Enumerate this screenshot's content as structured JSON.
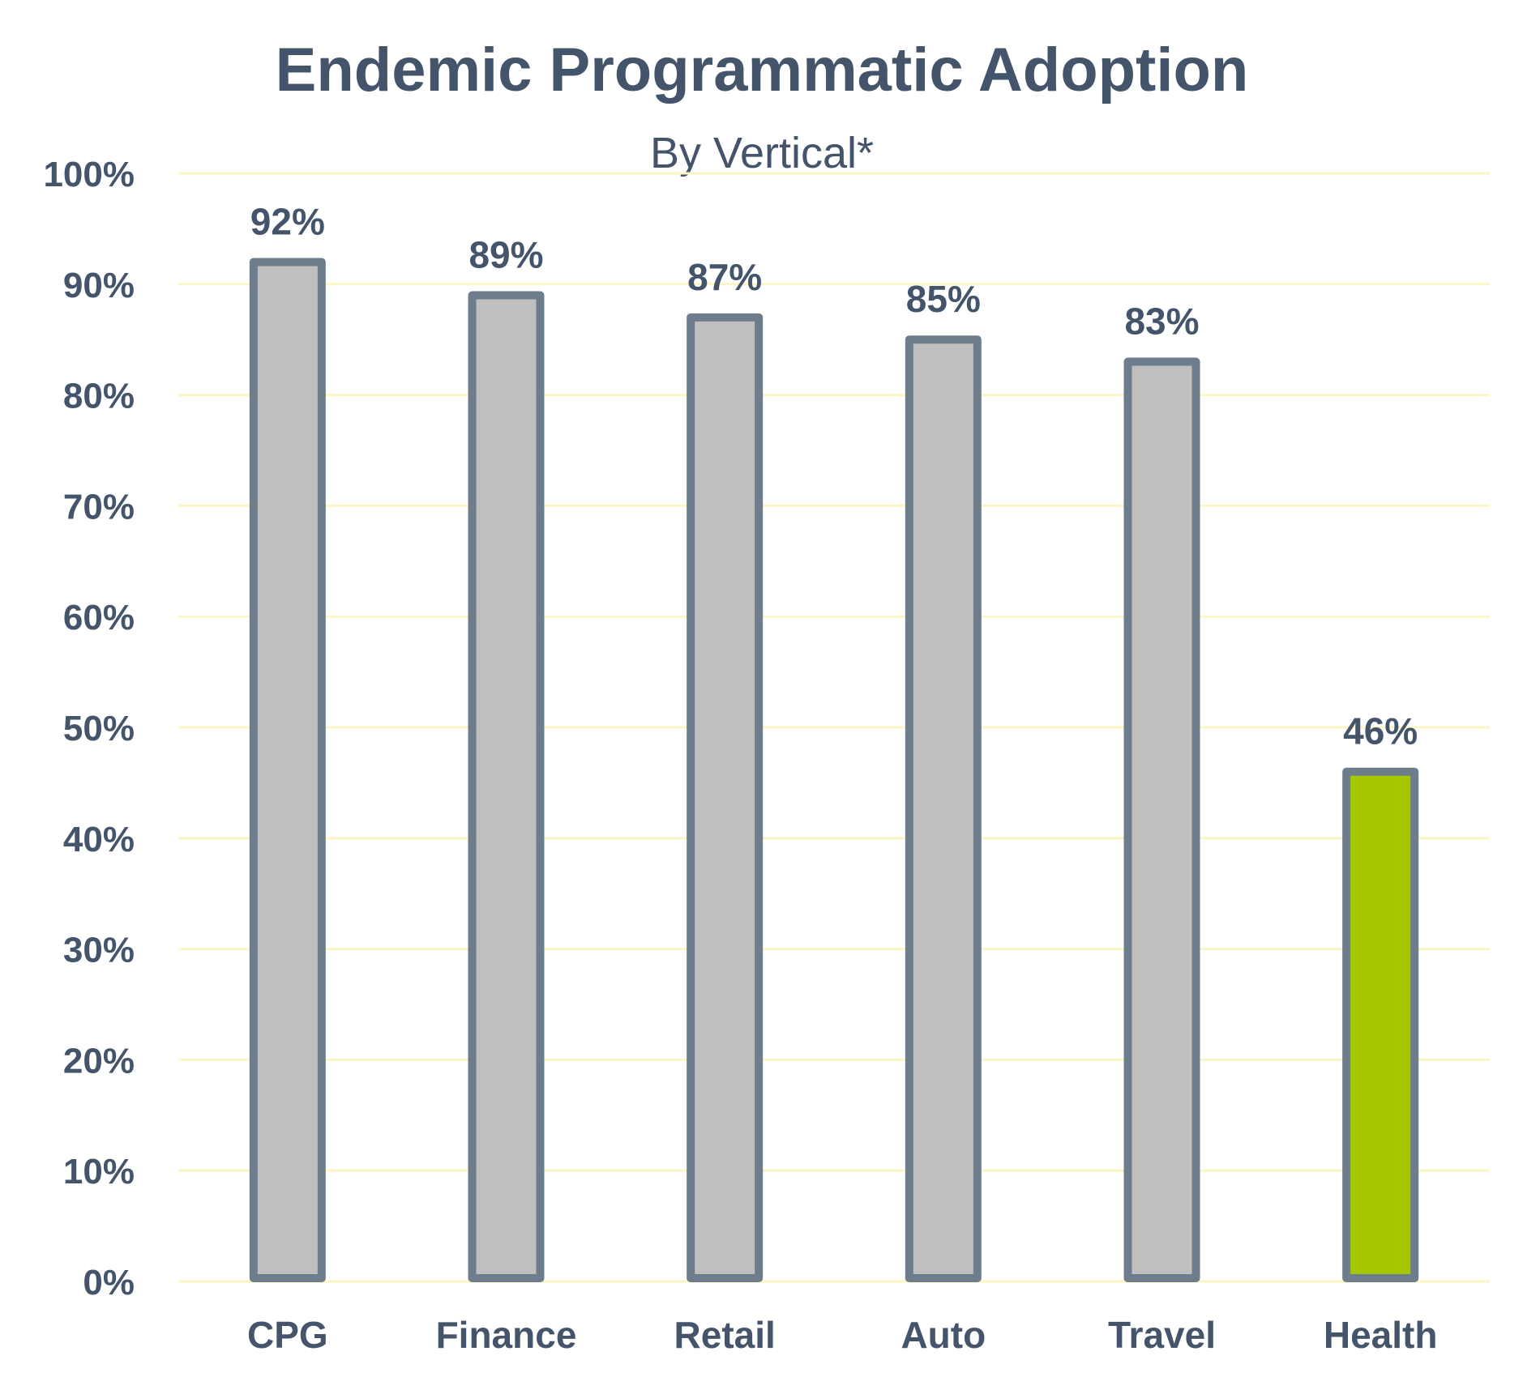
{
  "chart_data": {
    "type": "bar",
    "title": "Endemic Programmatic Adoption",
    "subtitle": "By Vertical*",
    "categories": [
      "CPG",
      "Finance",
      "Retail",
      "Auto",
      "Travel",
      "Health"
    ],
    "values": [
      92,
      89,
      87,
      85,
      83,
      46
    ],
    "value_labels": [
      "92%",
      "89%",
      "87%",
      "85%",
      "83%",
      "46%"
    ],
    "ylim": [
      0,
      100
    ],
    "yticks": [
      0,
      10,
      20,
      30,
      40,
      50,
      60,
      70,
      80,
      90,
      100
    ],
    "ytick_labels": [
      "0%",
      "10%",
      "20%",
      "30%",
      "40%",
      "50%",
      "60%",
      "70%",
      "80%",
      "90%",
      "100%"
    ],
    "xlabel": "",
    "ylabel": "",
    "grid": true,
    "legend": "none",
    "highlight_category": "Health"
  },
  "colors": {
    "text": "#44546a",
    "bar_fill": "#bfbfbf",
    "bar_stroke": "#6d7d8b",
    "highlight_fill": "#a5c800",
    "gridline": "#fbf6c4"
  }
}
